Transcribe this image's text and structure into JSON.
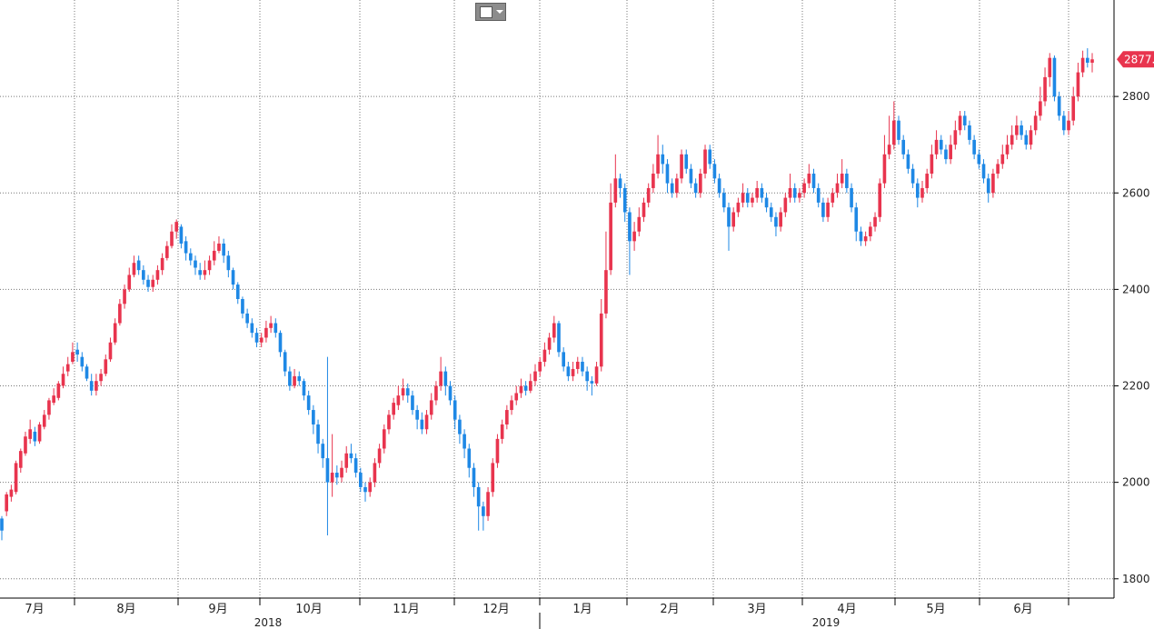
{
  "toolbar": {
    "chart_type_icon": "line-chart-icon",
    "dropdown_icon": "caret-down-icon"
  },
  "last_price_label": "2877.0",
  "colors": {
    "up": "#e8344e",
    "down": "#1e88e5",
    "grid": "#777777",
    "last_badge": "#e8344e"
  },
  "chart_data": {
    "type": "candlestick",
    "y_axis_side": "right",
    "ylim": [
      1760,
      3000
    ],
    "yticks": [
      1800,
      2000,
      2200,
      2400,
      2600,
      2800
    ],
    "ytick_labels": [
      "1800",
      "2000",
      "2200",
      "2400",
      "2600",
      "2800"
    ],
    "months": [
      "7月",
      "8月",
      "9月",
      "10月",
      "11月",
      "12月",
      "1月",
      "2月",
      "3月",
      "4月",
      "5月",
      "6月"
    ],
    "years": [
      "2018",
      "2019"
    ],
    "grid": true,
    "last_value": 2877.0,
    "candles": [
      [
        1925,
        1900,
        1930,
        1880
      ],
      [
        1940,
        1975,
        1980,
        1930
      ],
      [
        1970,
        1985,
        1995,
        1960
      ],
      [
        1980,
        2040,
        2045,
        1975
      ],
      [
        2030,
        2065,
        2070,
        2020
      ],
      [
        2060,
        2095,
        2105,
        2055
      ],
      [
        2090,
        2110,
        2130,
        2080
      ],
      [
        2105,
        2085,
        2115,
        2075
      ],
      [
        2085,
        2120,
        2125,
        2080
      ],
      [
        2115,
        2140,
        2150,
        2110
      ],
      [
        2140,
        2170,
        2175,
        2130
      ],
      [
        2165,
        2180,
        2195,
        2160
      ],
      [
        2175,
        2205,
        2210,
        2170
      ],
      [
        2200,
        2225,
        2240,
        2195
      ],
      [
        2230,
        2245,
        2260,
        2220
      ],
      [
        2250,
        2270,
        2290,
        2245
      ],
      [
        2275,
        2265,
        2290,
        2250
      ],
      [
        2260,
        2240,
        2270,
        2230
      ],
      [
        2240,
        2215,
        2245,
        2210
      ],
      [
        2210,
        2190,
        2225,
        2180
      ],
      [
        2190,
        2210,
        2225,
        2180
      ],
      [
        2210,
        2225,
        2235,
        2200
      ],
      [
        2225,
        2255,
        2265,
        2220
      ],
      [
        2255,
        2290,
        2300,
        2250
      ],
      [
        2290,
        2330,
        2340,
        2285
      ],
      [
        2330,
        2370,
        2380,
        2325
      ],
      [
        2370,
        2400,
        2410,
        2360
      ],
      [
        2400,
        2430,
        2445,
        2395
      ],
      [
        2430,
        2455,
        2470,
        2425
      ],
      [
        2460,
        2440,
        2470,
        2430
      ],
      [
        2440,
        2420,
        2450,
        2410
      ],
      [
        2420,
        2405,
        2430,
        2395
      ],
      [
        2405,
        2420,
        2430,
        2395
      ],
      [
        2420,
        2440,
        2450,
        2410
      ],
      [
        2440,
        2465,
        2475,
        2430
      ],
      [
        2465,
        2490,
        2500,
        2460
      ],
      [
        2490,
        2520,
        2535,
        2485
      ],
      [
        2520,
        2540,
        2545,
        2505
      ],
      [
        2530,
        2495,
        2535,
        2485
      ],
      [
        2500,
        2475,
        2510,
        2460
      ],
      [
        2475,
        2460,
        2485,
        2450
      ],
      [
        2460,
        2445,
        2470,
        2430
      ],
      [
        2440,
        2430,
        2455,
        2420
      ],
      [
        2430,
        2440,
        2460,
        2420
      ],
      [
        2440,
        2460,
        2470,
        2430
      ],
      [
        2460,
        2480,
        2500,
        2450
      ],
      [
        2480,
        2495,
        2510,
        2475
      ],
      [
        2495,
        2470,
        2505,
        2455
      ],
      [
        2470,
        2440,
        2480,
        2425
      ],
      [
        2440,
        2410,
        2445,
        2400
      ],
      [
        2410,
        2380,
        2415,
        2370
      ],
      [
        2380,
        2350,
        2385,
        2340
      ],
      [
        2350,
        2330,
        2360,
        2320
      ],
      [
        2330,
        2310,
        2340,
        2300
      ],
      [
        2310,
        2290,
        2320,
        2280
      ],
      [
        2290,
        2300,
        2310,
        2280
      ],
      [
        2300,
        2320,
        2335,
        2290
      ],
      [
        2320,
        2330,
        2345,
        2310
      ],
      [
        2330,
        2310,
        2340,
        2300
      ],
      [
        2310,
        2270,
        2315,
        2260
      ],
      [
        2270,
        2230,
        2275,
        2220
      ],
      [
        2230,
        2200,
        2240,
        2190
      ],
      [
        2200,
        2220,
        2235,
        2195
      ],
      [
        2220,
        2210,
        2230,
        2200
      ],
      [
        2210,
        2180,
        2215,
        2170
      ],
      [
        2180,
        2150,
        2190,
        2140
      ],
      [
        2150,
        2120,
        2160,
        2100
      ],
      [
        2120,
        2080,
        2130,
        2060
      ],
      [
        2080,
        2050,
        2090,
        2030
      ],
      [
        2050,
        2000,
        2260,
        1890
      ],
      [
        2000,
        2020,
        2100,
        1970
      ],
      [
        2020,
        2010,
        2035,
        1995
      ],
      [
        2010,
        2030,
        2045,
        2000
      ],
      [
        2030,
        2060,
        2075,
        2020
      ],
      [
        2060,
        2050,
        2080,
        2040
      ],
      [
        2050,
        2020,
        2060,
        2010
      ],
      [
        2020,
        1990,
        2030,
        1980
      ],
      [
        1990,
        1980,
        2000,
        1960
      ],
      [
        1980,
        2000,
        2010,
        1970
      ],
      [
        2000,
        2040,
        2050,
        1990
      ],
      [
        2040,
        2070,
        2080,
        2030
      ],
      [
        2070,
        2110,
        2120,
        2060
      ],
      [
        2110,
        2140,
        2150,
        2100
      ],
      [
        2140,
        2165,
        2175,
        2130
      ],
      [
        2160,
        2180,
        2200,
        2150
      ],
      [
        2180,
        2195,
        2215,
        2170
      ],
      [
        2195,
        2180,
        2205,
        2165
      ],
      [
        2180,
        2150,
        2190,
        2140
      ],
      [
        2150,
        2130,
        2160,
        2110
      ],
      [
        2130,
        2110,
        2145,
        2100
      ],
      [
        2110,
        2140,
        2150,
        2100
      ],
      [
        2140,
        2170,
        2185,
        2130
      ],
      [
        2170,
        2200,
        2210,
        2160
      ],
      [
        2200,
        2230,
        2260,
        2190
      ],
      [
        2230,
        2200,
        2240,
        2180
      ],
      [
        2200,
        2170,
        2210,
        2160
      ],
      [
        2170,
        2130,
        2180,
        2110
      ],
      [
        2130,
        2100,
        2140,
        2080
      ],
      [
        2100,
        2070,
        2110,
        2050
      ],
      [
        2070,
        2030,
        2080,
        2010
      ],
      [
        2030,
        1990,
        2040,
        1970
      ],
      [
        1990,
        1950,
        2000,
        1900
      ],
      [
        1950,
        1930,
        1960,
        1900
      ],
      [
        1930,
        1980,
        1990,
        1920
      ],
      [
        1980,
        2040,
        2050,
        1970
      ],
      [
        2040,
        2090,
        2100,
        2030
      ],
      [
        2090,
        2120,
        2130,
        2080
      ],
      [
        2120,
        2150,
        2160,
        2110
      ],
      [
        2150,
        2170,
        2180,
        2140
      ],
      [
        2170,
        2185,
        2200,
        2160
      ],
      [
        2185,
        2200,
        2215,
        2175
      ],
      [
        2200,
        2190,
        2210,
        2180
      ],
      [
        2190,
        2210,
        2225,
        2185
      ],
      [
        2210,
        2230,
        2245,
        2200
      ],
      [
        2230,
        2250,
        2260,
        2220
      ],
      [
        2250,
        2275,
        2290,
        2240
      ],
      [
        2275,
        2300,
        2310,
        2265
      ],
      [
        2300,
        2330,
        2345,
        2290
      ],
      [
        2330,
        2270,
        2335,
        2260
      ],
      [
        2270,
        2240,
        2280,
        2230
      ],
      [
        2240,
        2220,
        2250,
        2210
      ],
      [
        2220,
        2235,
        2250,
        2210
      ],
      [
        2235,
        2250,
        2260,
        2225
      ],
      [
        2250,
        2230,
        2260,
        2220
      ],
      [
        2230,
        2210,
        2240,
        2190
      ],
      [
        2210,
        2205,
        2220,
        2180
      ],
      [
        2205,
        2240,
        2250,
        2200
      ],
      [
        2240,
        2350,
        2380,
        2230
      ],
      [
        2350,
        2440,
        2520,
        2340
      ],
      [
        2440,
        2580,
        2620,
        2430
      ],
      [
        2580,
        2630,
        2680,
        2570
      ],
      [
        2630,
        2610,
        2640,
        2590
      ],
      [
        2610,
        2560,
        2620,
        2540
      ],
      [
        2560,
        2500,
        2570,
        2430
      ],
      [
        2500,
        2520,
        2540,
        2480
      ],
      [
        2520,
        2550,
        2570,
        2510
      ],
      [
        2550,
        2580,
        2590,
        2540
      ],
      [
        2580,
        2610,
        2620,
        2570
      ],
      [
        2610,
        2640,
        2660,
        2600
      ],
      [
        2640,
        2680,
        2720,
        2630
      ],
      [
        2680,
        2660,
        2700,
        2640
      ],
      [
        2660,
        2620,
        2670,
        2600
      ],
      [
        2620,
        2600,
        2630,
        2590
      ],
      [
        2600,
        2630,
        2640,
        2590
      ],
      [
        2630,
        2680,
        2690,
        2620
      ],
      [
        2680,
        2650,
        2690,
        2640
      ],
      [
        2650,
        2620,
        2660,
        2610
      ],
      [
        2620,
        2600,
        2630,
        2590
      ],
      [
        2600,
        2640,
        2650,
        2590
      ],
      [
        2640,
        2690,
        2700,
        2630
      ],
      [
        2690,
        2660,
        2700,
        2650
      ],
      [
        2660,
        2630,
        2670,
        2620
      ],
      [
        2630,
        2600,
        2640,
        2590
      ],
      [
        2600,
        2570,
        2610,
        2560
      ],
      [
        2570,
        2530,
        2580,
        2480
      ],
      [
        2530,
        2560,
        2570,
        2520
      ],
      [
        2560,
        2580,
        2590,
        2550
      ],
      [
        2580,
        2600,
        2620,
        2570
      ],
      [
        2600,
        2580,
        2610,
        2570
      ],
      [
        2580,
        2590,
        2600,
        2570
      ],
      [
        2590,
        2610,
        2625,
        2580
      ],
      [
        2610,
        2590,
        2620,
        2580
      ],
      [
        2590,
        2570,
        2600,
        2560
      ],
      [
        2570,
        2550,
        2580,
        2540
      ],
      [
        2550,
        2530,
        2560,
        2510
      ],
      [
        2530,
        2560,
        2570,
        2520
      ],
      [
        2560,
        2590,
        2600,
        2550
      ],
      [
        2590,
        2610,
        2640,
        2580
      ],
      [
        2610,
        2590,
        2620,
        2580
      ],
      [
        2590,
        2600,
        2610,
        2580
      ],
      [
        2600,
        2620,
        2630,
        2590
      ],
      [
        2620,
        2640,
        2660,
        2610
      ],
      [
        2640,
        2610,
        2650,
        2600
      ],
      [
        2610,
        2580,
        2620,
        2570
      ],
      [
        2580,
        2550,
        2590,
        2540
      ],
      [
        2550,
        2580,
        2590,
        2540
      ],
      [
        2580,
        2600,
        2610,
        2570
      ],
      [
        2600,
        2620,
        2640,
        2590
      ],
      [
        2620,
        2640,
        2670,
        2610
      ],
      [
        2640,
        2610,
        2650,
        2600
      ],
      [
        2610,
        2570,
        2620,
        2560
      ],
      [
        2570,
        2520,
        2580,
        2500
      ],
      [
        2520,
        2500,
        2530,
        2490
      ],
      [
        2500,
        2510,
        2520,
        2490
      ],
      [
        2510,
        2530,
        2540,
        2500
      ],
      [
        2530,
        2550,
        2560,
        2520
      ],
      [
        2550,
        2620,
        2630,
        2540
      ],
      [
        2620,
        2680,
        2720,
        2610
      ],
      [
        2680,
        2700,
        2760,
        2670
      ],
      [
        2700,
        2750,
        2790,
        2690
      ],
      [
        2750,
        2710,
        2760,
        2700
      ],
      [
        2710,
        2680,
        2720,
        2670
      ],
      [
        2680,
        2650,
        2690,
        2640
      ],
      [
        2650,
        2620,
        2660,
        2610
      ],
      [
        2620,
        2590,
        2630,
        2570
      ],
      [
        2590,
        2610,
        2625,
        2580
      ],
      [
        2610,
        2640,
        2650,
        2600
      ],
      [
        2640,
        2680,
        2700,
        2630
      ],
      [
        2680,
        2710,
        2730,
        2670
      ],
      [
        2710,
        2690,
        2720,
        2680
      ],
      [
        2690,
        2670,
        2700,
        2660
      ],
      [
        2670,
        2700,
        2720,
        2660
      ],
      [
        2700,
        2730,
        2750,
        2690
      ],
      [
        2730,
        2760,
        2770,
        2720
      ],
      [
        2760,
        2740,
        2770,
        2730
      ],
      [
        2740,
        2710,
        2750,
        2700
      ],
      [
        2710,
        2680,
        2720,
        2670
      ],
      [
        2680,
        2660,
        2690,
        2650
      ],
      [
        2660,
        2630,
        2670,
        2620
      ],
      [
        2630,
        2600,
        2640,
        2580
      ],
      [
        2600,
        2640,
        2650,
        2590
      ],
      [
        2640,
        2660,
        2670,
        2630
      ],
      [
        2660,
        2680,
        2700,
        2650
      ],
      [
        2680,
        2700,
        2720,
        2670
      ],
      [
        2700,
        2720,
        2740,
        2690
      ],
      [
        2720,
        2740,
        2760,
        2710
      ],
      [
        2740,
        2720,
        2750,
        2710
      ],
      [
        2720,
        2700,
        2730,
        2690
      ],
      [
        2700,
        2730,
        2740,
        2690
      ],
      [
        2730,
        2760,
        2770,
        2720
      ],
      [
        2760,
        2790,
        2820,
        2750
      ],
      [
        2790,
        2840,
        2860,
        2780
      ],
      [
        2840,
        2880,
        2890,
        2820
      ],
      [
        2880,
        2800,
        2885,
        2790
      ],
      [
        2800,
        2760,
        2810,
        2750
      ],
      [
        2760,
        2730,
        2770,
        2720
      ],
      [
        2730,
        2750,
        2770,
        2720
      ],
      [
        2750,
        2800,
        2820,
        2740
      ],
      [
        2800,
        2850,
        2870,
        2790
      ],
      [
        2850,
        2880,
        2895,
        2840
      ],
      [
        2880,
        2870,
        2900,
        2860
      ],
      [
        2870,
        2877,
        2890,
        2850
      ]
    ]
  }
}
